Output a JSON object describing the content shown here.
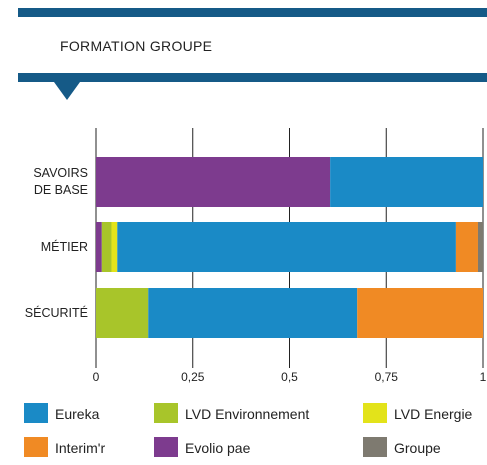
{
  "chart_data": {
    "type": "stacked-bar-horizontal",
    "title": "FORMATION GROUPE",
    "categories": [
      "SAVOIRS DE BASE",
      "MÉTIER",
      "SÉCURITÉ"
    ],
    "series": [
      {
        "name": "Eureka",
        "color": "#1a8ac6",
        "values": [
          0.395,
          0.875,
          0.54
        ]
      },
      {
        "name": "LVD Environnement",
        "color": "#a8c52a",
        "values": [
          0,
          0.025,
          0.135
        ]
      },
      {
        "name": "LVD Energie",
        "color": "#e3e31a",
        "values": [
          0,
          0.015,
          0
        ]
      },
      {
        "name": "Interim'r",
        "color": "#f08a24",
        "values": [
          0,
          0.057,
          0.325
        ]
      },
      {
        "name": "Evolio pae",
        "color": "#7d3b8e",
        "values": [
          0.605,
          0.015,
          0
        ]
      },
      {
        "name": "Groupe",
        "color": "#7e7a70",
        "values": [
          0,
          0.013,
          0
        ]
      }
    ],
    "xlim": [
      0,
      1
    ],
    "xticks": [
      0,
      {
        "value": 0.25,
        "label": "0,25"
      },
      {
        "value": 0.5,
        "label": "0,5"
      },
      {
        "value": 0.75,
        "label": "0,75"
      },
      1
    ],
    "grid": true
  }
}
